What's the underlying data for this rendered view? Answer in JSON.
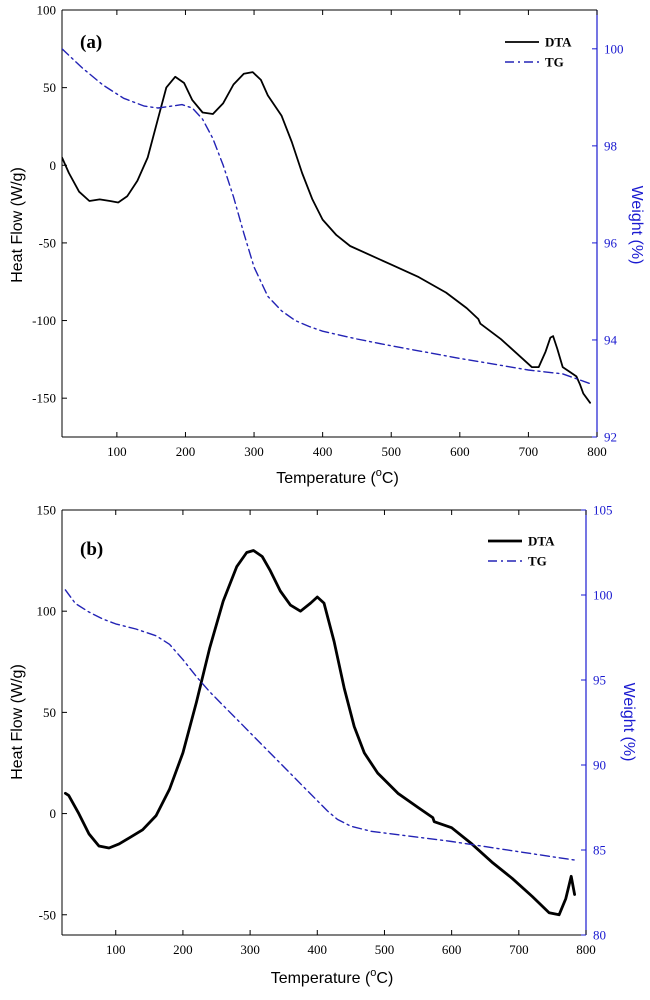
{
  "chart_data": [
    {
      "type": "line",
      "panel_label": "(a)",
      "xlabel": "Temperature (oC)",
      "xlabel_parts": {
        "pre": "Temperature (",
        "sup": "o",
        "post": "C)"
      },
      "xlim": [
        20,
        800
      ],
      "xticks": [
        100,
        200,
        300,
        400,
        500,
        600,
        700,
        800
      ],
      "ylabel_left": "Heat Flow (W/g)",
      "ylim_left": [
        -175,
        100
      ],
      "yticks_left": [
        -150,
        -100,
        -50,
        0,
        50,
        100
      ],
      "ylabel_right": "Weight (%)",
      "ylim_right": [
        92,
        100.8
      ],
      "yticks_right": [
        92,
        94,
        96,
        98,
        100
      ],
      "legend": [
        "DTA",
        "TG"
      ],
      "legend_position": "top-right",
      "series": [
        {
          "name": "DTA",
          "axis": "left",
          "color": "#000000",
          "style": "solid",
          "points": [
            [
              20,
              5
            ],
            [
              30,
              -5
            ],
            [
              45,
              -17
            ],
            [
              60,
              -23
            ],
            [
              75,
              -22
            ],
            [
              90,
              -23
            ],
            [
              102,
              -24
            ],
            [
              115,
              -20
            ],
            [
              130,
              -10
            ],
            [
              145,
              5
            ],
            [
              160,
              30
            ],
            [
              172,
              50
            ],
            [
              185,
              57
            ],
            [
              198,
              53
            ],
            [
              210,
              42
            ],
            [
              225,
              34
            ],
            [
              240,
              33
            ],
            [
              255,
              40
            ],
            [
              270,
              52
            ],
            [
              285,
              59
            ],
            [
              298,
              60
            ],
            [
              310,
              55
            ],
            [
              320,
              45
            ],
            [
              340,
              32
            ],
            [
              355,
              15
            ],
            [
              370,
              -5
            ],
            [
              385,
              -22
            ],
            [
              400,
              -35
            ],
            [
              420,
              -45
            ],
            [
              440,
              -52
            ],
            [
              460,
              -56
            ],
            [
              500,
              -64
            ],
            [
              540,
              -72
            ],
            [
              580,
              -82
            ],
            [
              610,
              -92
            ],
            [
              627,
              -99
            ],
            [
              630,
              -102
            ],
            [
              660,
              -112
            ],
            [
              690,
              -124
            ],
            [
              705,
              -130
            ],
            [
              715,
              -130
            ],
            [
              725,
              -120
            ],
            [
              732,
              -111
            ],
            [
              736,
              -110
            ],
            [
              742,
              -118
            ],
            [
              750,
              -130
            ],
            [
              760,
              -133
            ],
            [
              770,
              -136
            ],
            [
              775,
              -141
            ],
            [
              780,
              -147
            ],
            [
              790,
              -153
            ]
          ]
        },
        {
          "name": "TG",
          "axis": "right",
          "color": "#2323b5",
          "style": "dashdot",
          "points": [
            [
              20,
              100
            ],
            [
              50,
              99.6
            ],
            [
              80,
              99.25
            ],
            [
              110,
              98.98
            ],
            [
              140,
              98.82
            ],
            [
              160,
              98.78
            ],
            [
              180,
              98.82
            ],
            [
              195,
              98.85
            ],
            [
              210,
              98.78
            ],
            [
              225,
              98.55
            ],
            [
              240,
              98.15
            ],
            [
              255,
              97.6
            ],
            [
              270,
              96.95
            ],
            [
              285,
              96.2
            ],
            [
              300,
              95.5
            ],
            [
              320,
              94.9
            ],
            [
              340,
              94.6
            ],
            [
              360,
              94.4
            ],
            [
              380,
              94.28
            ],
            [
              400,
              94.18
            ],
            [
              450,
              94.02
            ],
            [
              500,
              93.88
            ],
            [
              550,
              93.75
            ],
            [
              600,
              93.62
            ],
            [
              650,
              93.5
            ],
            [
              700,
              93.38
            ],
            [
              750,
              93.3
            ],
            [
              790,
              93.1
            ]
          ]
        }
      ]
    },
    {
      "type": "line",
      "panel_label": "(b)",
      "xlabel": "Temperature (oC)",
      "xlabel_parts": {
        "pre": "Temperature (",
        "sup": "o",
        "post": "C)"
      },
      "xlim": [
        20,
        800
      ],
      "xticks": [
        100,
        200,
        300,
        400,
        500,
        600,
        700,
        800
      ],
      "ylabel_left": "Heat Flow (W/g)",
      "ylim_left": [
        -60,
        150
      ],
      "yticks_left": [
        -50,
        0,
        50,
        100,
        150
      ],
      "ylabel_right": "Weight (%)",
      "ylim_right": [
        80,
        105
      ],
      "yticks_right": [
        80,
        85,
        90,
        95,
        100,
        105
      ],
      "legend": [
        "DTA",
        "TG"
      ],
      "legend_position": "top-right",
      "series": [
        {
          "name": "DTA",
          "axis": "left",
          "color": "#000000",
          "style": "solid",
          "thick": true,
          "points": [
            [
              25,
              10
            ],
            [
              30,
              9
            ],
            [
              45,
              0
            ],
            [
              60,
              -10
            ],
            [
              75,
              -16
            ],
            [
              90,
              -17
            ],
            [
              105,
              -15
            ],
            [
              120,
              -12
            ],
            [
              140,
              -8
            ],
            [
              160,
              -1
            ],
            [
              180,
              12
            ],
            [
              200,
              30
            ],
            [
              220,
              55
            ],
            [
              240,
              82
            ],
            [
              260,
              105
            ],
            [
              280,
              122
            ],
            [
              295,
              129
            ],
            [
              305,
              130
            ],
            [
              318,
              127
            ],
            [
              330,
              120
            ],
            [
              345,
              110
            ],
            [
              360,
              103
            ],
            [
              375,
              100
            ],
            [
              390,
              104
            ],
            [
              400,
              107
            ],
            [
              410,
              104
            ],
            [
              425,
              85
            ],
            [
              440,
              62
            ],
            [
              455,
              43
            ],
            [
              470,
              30
            ],
            [
              490,
              20
            ],
            [
              520,
              10
            ],
            [
              550,
              3
            ],
            [
              572,
              -2
            ],
            [
              574,
              -4
            ],
            [
              600,
              -7
            ],
            [
              630,
              -15
            ],
            [
              660,
              -24
            ],
            [
              690,
              -32
            ],
            [
              720,
              -41
            ],
            [
              745,
              -49
            ],
            [
              760,
              -50
            ],
            [
              770,
              -42
            ],
            [
              778,
              -31
            ],
            [
              783,
              -40
            ]
          ]
        },
        {
          "name": "TG",
          "axis": "right",
          "color": "#2323b5",
          "style": "dashdot",
          "points": [
            [
              25,
              100.3
            ],
            [
              40,
              99.5
            ],
            [
              60,
              99
            ],
            [
              80,
              98.6
            ],
            [
              100,
              98.3
            ],
            [
              130,
              98
            ],
            [
              160,
              97.6
            ],
            [
              180,
              97.1
            ],
            [
              200,
              96.2
            ],
            [
              220,
              95.2
            ],
            [
              240,
              94.3
            ],
            [
              260,
              93.5
            ],
            [
              280,
              92.7
            ],
            [
              300,
              91.9
            ],
            [
              320,
              91.1
            ],
            [
              340,
              90.3
            ],
            [
              360,
              89.5
            ],
            [
              380,
              88.7
            ],
            [
              400,
              87.9
            ],
            [
              415,
              87.3
            ],
            [
              430,
              86.8
            ],
            [
              450,
              86.4
            ],
            [
              480,
              86.1
            ],
            [
              520,
              85.9
            ],
            [
              560,
              85.7
            ],
            [
              600,
              85.5
            ],
            [
              650,
              85.2
            ],
            [
              700,
              84.9
            ],
            [
              750,
              84.6
            ],
            [
              785,
              84.4
            ]
          ]
        }
      ]
    }
  ]
}
